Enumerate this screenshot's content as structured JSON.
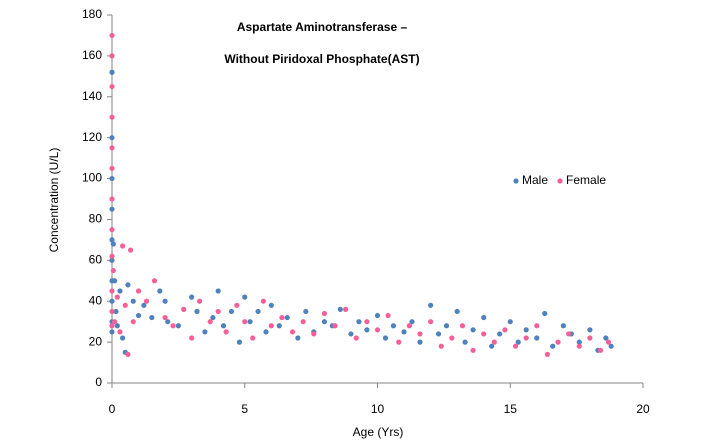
{
  "chart_data": {
    "type": "scatter",
    "title": "Aspartate Aminotransferase –",
    "subtitle": "Without Piridoxal Phosphate(AST)",
    "x_label": "Age (Yrs)",
    "y_label": "Concentration (U/L)",
    "xlim": [
      0,
      20
    ],
    "xticks": [
      0,
      5,
      10,
      15,
      20
    ],
    "ylim": [
      0,
      180
    ],
    "yticks": [
      0,
      20,
      40,
      60,
      80,
      100,
      120,
      140,
      160,
      180
    ],
    "series": [
      {
        "name": "Male",
        "color": "#4f81bd",
        "x": [
          0,
          0,
          0,
          0,
          0,
          0,
          0,
          0,
          0,
          0,
          0.05,
          0.1,
          0.15,
          0.2,
          0.3,
          0.4,
          0.5,
          0.6,
          0.8,
          1.0,
          1.2,
          1.5,
          1.8,
          2.0,
          2.1,
          2.5,
          3.0,
          3.2,
          3.5,
          3.8,
          4.0,
          4.2,
          4.5,
          4.8,
          5.0,
          5.2,
          5.5,
          5.8,
          6.0,
          6.3,
          6.6,
          7.0,
          7.3,
          7.6,
          8.0,
          8.3,
          8.6,
          9.0,
          9.3,
          9.6,
          10.0,
          10.3,
          10.6,
          11.0,
          11.3,
          11.6,
          12.0,
          12.3,
          12.6,
          13.0,
          13.3,
          13.6,
          14.0,
          14.3,
          14.6,
          15.0,
          15.3,
          15.6,
          16.0,
          16.3,
          16.6,
          17.0,
          17.3,
          17.6,
          18.0,
          18.3,
          18.6,
          18.8
        ],
        "values": [
          152,
          120,
          100,
          85,
          70,
          60,
          50,
          40,
          30,
          25,
          68,
          50,
          35,
          28,
          45,
          22,
          15,
          48,
          40,
          33,
          38,
          32,
          45,
          40,
          30,
          28,
          42,
          35,
          25,
          32,
          45,
          28,
          35,
          20,
          42,
          30,
          35,
          25,
          38,
          28,
          32,
          22,
          35,
          25,
          30,
          28,
          36,
          24,
          30,
          26,
          33,
          22,
          28,
          25,
          30,
          20,
          38,
          24,
          28,
          35,
          20,
          26,
          32,
          18,
          24,
          30,
          20,
          26,
          22,
          34,
          18,
          28,
          24,
          20,
          26,
          16,
          22,
          18
        ]
      },
      {
        "name": "Female",
        "color": "#f75f98",
        "x": [
          0,
          0,
          0,
          0,
          0,
          0,
          0,
          0,
          0,
          0,
          0,
          0,
          0.05,
          0.1,
          0.2,
          0.3,
          0.4,
          0.5,
          0.6,
          0.7,
          0.8,
          1.0,
          1.3,
          1.6,
          2.0,
          2.3,
          2.7,
          3.0,
          3.3,
          3.7,
          4.0,
          4.3,
          4.7,
          5.0,
          5.3,
          5.7,
          6.0,
          6.4,
          6.8,
          7.2,
          7.6,
          8.0,
          8.4,
          8.8,
          9.2,
          9.6,
          10.0,
          10.4,
          10.8,
          11.2,
          11.6,
          12.0,
          12.4,
          12.8,
          13.2,
          13.6,
          14.0,
          14.4,
          14.8,
          15.2,
          15.6,
          16.0,
          16.4,
          16.8,
          17.2,
          17.6,
          18.0,
          18.4,
          18.7
        ],
        "values": [
          170,
          160,
          145,
          130,
          115,
          105,
          90,
          75,
          62,
          45,
          35,
          28,
          55,
          30,
          42,
          25,
          67,
          38,
          14,
          65,
          30,
          45,
          40,
          50,
          32,
          28,
          36,
          22,
          40,
          30,
          35,
          25,
          38,
          30,
          22,
          40,
          28,
          32,
          25,
          30,
          24,
          34,
          28,
          36,
          22,
          30,
          26,
          33,
          20,
          28,
          24,
          30,
          18,
          22,
          28,
          16,
          24,
          20,
          26,
          18,
          22,
          28,
          14,
          20,
          24,
          18,
          22,
          16,
          20
        ]
      }
    ]
  }
}
